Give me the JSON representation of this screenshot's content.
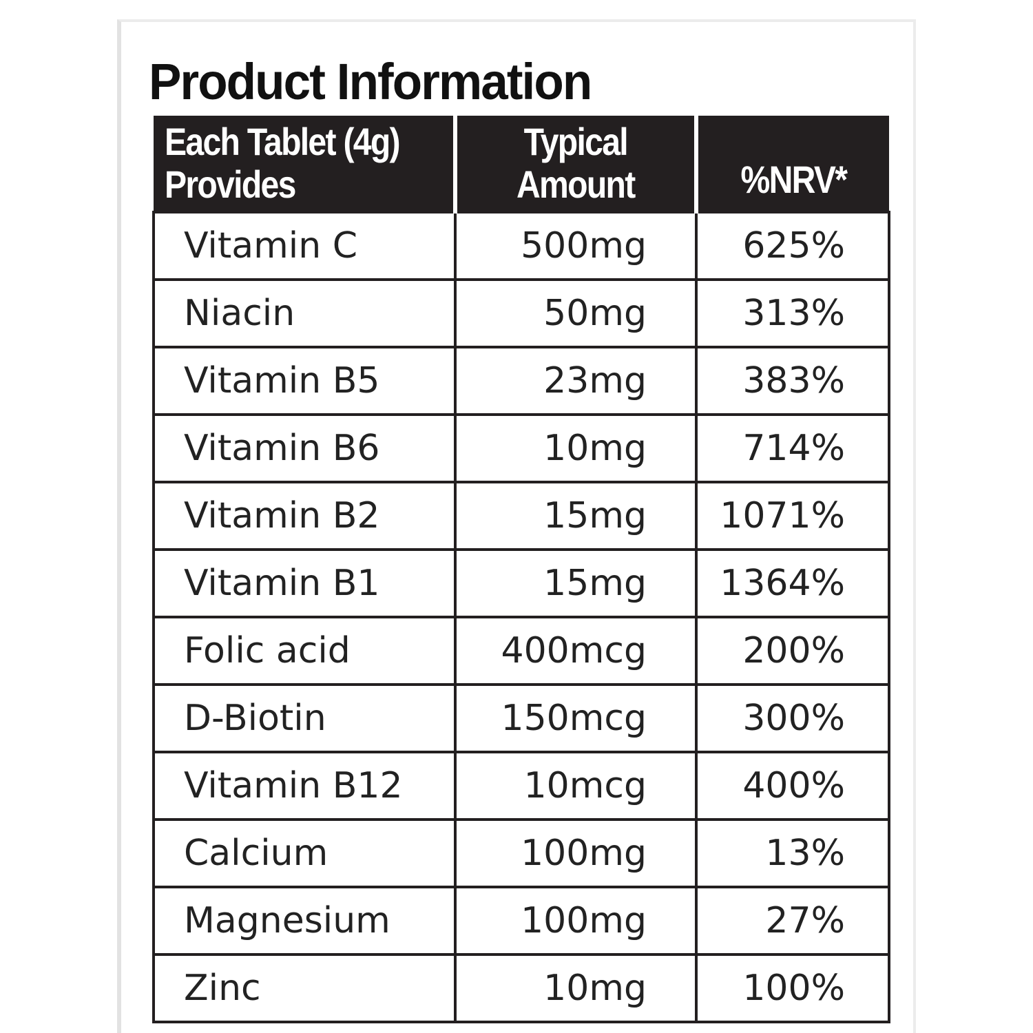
{
  "title": "Product Information",
  "table": {
    "headers": {
      "col1_line1": "Each Tablet (4g)",
      "col1_line2": "Provides",
      "col2_line1": "Typical",
      "col2_line2": "Amount",
      "col3": "%NRV*"
    },
    "rows": [
      {
        "name": "Vitamin C",
        "amount": "500mg",
        "nrv": "625%"
      },
      {
        "name": "Niacin",
        "amount": "50mg",
        "nrv": "313%"
      },
      {
        "name": "Vitamin B5",
        "amount": "23mg",
        "nrv": "383%"
      },
      {
        "name": "Vitamin B6",
        "amount": "10mg",
        "nrv": "714%"
      },
      {
        "name": "Vitamin B2",
        "amount": "15mg",
        "nrv": "1071%"
      },
      {
        "name": "Vitamin B1",
        "amount": "15mg",
        "nrv": "1364%"
      },
      {
        "name": "Folic acid",
        "amount": "400mcg",
        "nrv": "200%"
      },
      {
        "name": "D-Biotin",
        "amount": "150mcg",
        "nrv": "300%"
      },
      {
        "name": "Vitamin B12",
        "amount": "10mcg",
        "nrv": "400%"
      },
      {
        "name": "Calcium",
        "amount": "100mg",
        "nrv": "13%"
      },
      {
        "name": "Magnesium",
        "amount": "100mg",
        "nrv": "27%"
      },
      {
        "name": "Zinc",
        "amount": "10mg",
        "nrv": "100%"
      }
    ]
  }
}
